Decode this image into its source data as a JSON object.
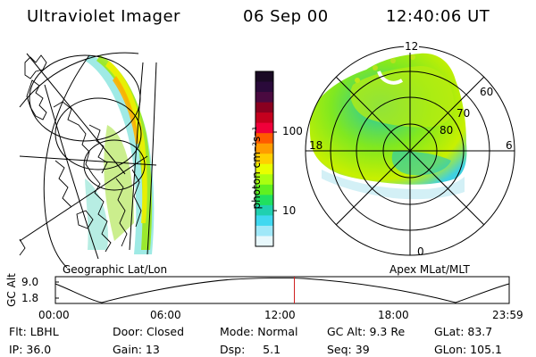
{
  "header": {
    "instrument": "Ultraviolet Imager",
    "date": "06 Sep 00",
    "time": "12:40:06 UT"
  },
  "left_panel": {
    "label": "Geographic Lat/Lon"
  },
  "right_panel": {
    "label": "Apex MLat/MLT",
    "mlt_labels": {
      "top": "12",
      "left": "18",
      "right": "6",
      "bottom": "0"
    },
    "mlat_labels": [
      "60",
      "70",
      "80"
    ]
  },
  "colorbar": {
    "unit_label": "photon cm⁻²s⁻¹",
    "ticks": [
      "100",
      "10"
    ],
    "colors": [
      "#1a0a24",
      "#2a0a3a",
      "#4a0a40",
      "#8a0020",
      "#c4001e",
      "#f0003a",
      "#ff5a00",
      "#ff9c00",
      "#ffd000",
      "#e8ff00",
      "#aaff10",
      "#60f020",
      "#20e060",
      "#20d0b0",
      "#40d8f0",
      "#a0e8f8",
      "#e8f8fc"
    ]
  },
  "altitude_plot": {
    "axis_label": "GC Alt",
    "y_ticks": [
      "9.0",
      "1.8"
    ],
    "x_ticks": [
      "00:00",
      "06:00",
      "12:00",
      "18:00",
      "23:59"
    ],
    "marker_color": "#d02020"
  },
  "info": {
    "row1": [
      "Flt: LBHL",
      "Door: Closed",
      "Mode: Normal",
      "GC Alt: 9.3 Re",
      "GLat: 83.7"
    ],
    "row2": [
      "IP: 36.0",
      "Gain: 13",
      "Dsp:     5.1",
      "Seq: 39",
      "GLon: 105.1"
    ]
  }
}
